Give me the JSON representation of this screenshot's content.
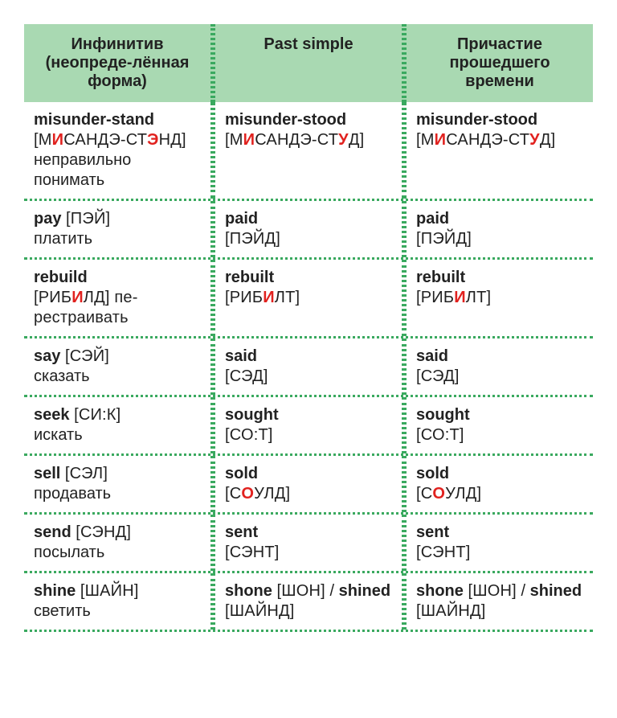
{
  "headers": {
    "col1": "Инфинитив (неопреде-лённая форма)",
    "col2": "Past simple",
    "col3": "Причастие прошедшего времени"
  },
  "colors": {
    "header_bg": "#a9d9b2",
    "border": "#3aa95f",
    "stress": "#e1221f",
    "text": "#222222",
    "background": "#ffffff"
  },
  "typography": {
    "header_fontsize": 20,
    "cell_fontsize": 20,
    "font_family": "Arial"
  },
  "rows": [
    {
      "c1": {
        "word": "misunder-stand",
        "trans_pre": "[М",
        "s1": "И",
        "mid1": "САНДЭ-СТ",
        "s2": "Э",
        "post": "НД]",
        "ru": "неправильно понимать"
      },
      "c2": {
        "word": "misunder-stood",
        "trans_pre": "[М",
        "s1": "И",
        "mid1": "САНДЭ-СТ",
        "s2": "У",
        "post": "Д]"
      },
      "c3": {
        "word": "misunder-stood",
        "trans_pre": "[М",
        "s1": "И",
        "mid1": "САНДЭ-СТ",
        "s2": "У",
        "post": "Д]"
      }
    },
    {
      "c1": {
        "word": "pay",
        "trans": "[ПЭЙ]",
        "ru": "платить"
      },
      "c2": {
        "word": "paid",
        "trans": "[ПЭЙД]"
      },
      "c3": {
        "word": "paid",
        "trans": "[ПЭЙД]"
      }
    },
    {
      "c1": {
        "word": "rebuild",
        "trans_pre": "[РИБ",
        "s1": "И",
        "post": "ЛД] пе-рестраивать"
      },
      "c2": {
        "word": "rebuilt",
        "trans_pre": "[РИБ",
        "s1": "И",
        "post": "ЛТ]"
      },
      "c3": {
        "word": "rebuilt",
        "trans_pre": "[РИБ",
        "s1": "И",
        "post": "ЛТ]"
      }
    },
    {
      "c1": {
        "word": "say",
        "trans": "[СЭЙ]",
        "ru": "сказать"
      },
      "c2": {
        "word": "said",
        "trans": "[СЭД]"
      },
      "c3": {
        "word": "said",
        "trans": "[СЭД]"
      }
    },
    {
      "c1": {
        "word": "seek",
        "trans": "[СИ:К]",
        "ru": "искать"
      },
      "c2": {
        "word": "sought",
        "trans": "[СО:Т]"
      },
      "c3": {
        "word": "sought",
        "trans": "[СО:Т]"
      }
    },
    {
      "c1": {
        "word": "sell",
        "trans": "[СЭЛ]",
        "ru": "продавать"
      },
      "c2": {
        "word": "sold",
        "trans_pre": "[С",
        "s1": "О",
        "post": "УЛД]"
      },
      "c3": {
        "word": "sold",
        "trans_pre": "[С",
        "s1": "О",
        "post": "УЛД]"
      }
    },
    {
      "c1": {
        "word": "send",
        "trans": "[СЭНД]",
        "ru": "посылать"
      },
      "c2": {
        "word": "sent",
        "trans": "[СЭНТ]"
      },
      "c3": {
        "word": "sent",
        "trans": "[СЭНТ]"
      }
    },
    {
      "c1": {
        "word": "shine",
        "trans": "[ШАЙН]",
        "ru": "светить"
      },
      "c2": {
        "word": "shone",
        "trans": "[ШОН]",
        "alt_word": "shined",
        "alt_trans": "[ШАЙНД]"
      },
      "c3": {
        "word": "shone",
        "trans": "[ШОН]",
        "alt_word": "shined",
        "alt_trans": "[ШАЙНД]"
      }
    }
  ]
}
